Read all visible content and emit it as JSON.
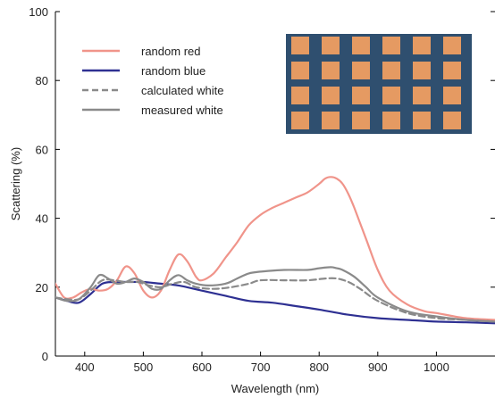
{
  "chart_data": {
    "type": "line",
    "xlabel": "Wavelength (nm)",
    "ylabel": "Scattering (%)",
    "xlim": [
      350,
      1100
    ],
    "ylim": [
      0,
      100
    ],
    "xticks": [
      400,
      500,
      600,
      700,
      800,
      900,
      1000
    ],
    "yticks": [
      0,
      20,
      40,
      60,
      80,
      100
    ],
    "grid": false,
    "legend_position": "top-left",
    "inset": {
      "description_icon": "microscope-image-icon",
      "position": "top-right"
    },
    "series": [
      {
        "name": "random red",
        "color": "#f0948a",
        "dash": "solid",
        "x": [
          350,
          365,
          380,
          395,
          410,
          425,
          440,
          455,
          470,
          485,
          500,
          515,
          530,
          545,
          560,
          575,
          590,
          600,
          620,
          640,
          660,
          680,
          700,
          720,
          740,
          760,
          780,
          800,
          810,
          820,
          830,
          840,
          850,
          860,
          880,
          900,
          920,
          950,
          980,
          1000,
          1050,
          1100
        ],
        "y": [
          21,
          17,
          17,
          18.5,
          19.5,
          19,
          19.5,
          22,
          26,
          24,
          19,
          17,
          19,
          25,
          29.5,
          27.5,
          23,
          22,
          24,
          28.5,
          33,
          38,
          41,
          43,
          44.5,
          46,
          47.5,
          50,
          51.5,
          52,
          51.5,
          50,
          47,
          43,
          34,
          25,
          19,
          15,
          13,
          12.5,
          11,
          10.5
        ]
      },
      {
        "name": "random blue",
        "color": "#2e3092",
        "dash": "solid",
        "x": [
          350,
          370,
          390,
          410,
          430,
          450,
          480,
          500,
          530,
          560,
          600,
          640,
          680,
          720,
          760,
          800,
          850,
          900,
          950,
          1000,
          1050,
          1100
        ],
        "y": [
          17,
          16,
          15.5,
          18,
          21,
          21.5,
          21.5,
          21.5,
          21,
          20.5,
          19,
          17.5,
          16,
          15.5,
          14.5,
          13.5,
          12,
          11,
          10.5,
          10,
          9.8,
          9.5
        ]
      },
      {
        "name": "calculated white",
        "color": "#8a8a8a",
        "dash": "dashed",
        "x": [
          350,
          370,
          390,
          410,
          430,
          450,
          470,
          490,
          510,
          530,
          550,
          570,
          590,
          620,
          650,
          680,
          700,
          740,
          780,
          810,
          830,
          850,
          870,
          900,
          950,
          1000,
          1050,
          1100
        ],
        "y": [
          17,
          16.5,
          16.5,
          19,
          22,
          22,
          21.5,
          21.5,
          20.5,
          20,
          21,
          21.5,
          20,
          19.5,
          20,
          21,
          22,
          22,
          22,
          22.5,
          22.5,
          21.5,
          19.5,
          16,
          12.5,
          11,
          10.5,
          10
        ]
      },
      {
        "name": "measured white",
        "color": "#8a8a8a",
        "dash": "solid",
        "x": [
          350,
          370,
          390,
          410,
          425,
          440,
          455,
          470,
          485,
          500,
          515,
          530,
          545,
          560,
          575,
          590,
          610,
          640,
          660,
          680,
          700,
          740,
          780,
          800,
          820,
          830,
          840,
          860,
          880,
          900,
          950,
          1000,
          1050,
          1100
        ],
        "y": [
          17,
          16,
          16.5,
          20,
          23.5,
          22.5,
          21,
          21.5,
          22.5,
          21.5,
          19.5,
          19.5,
          22,
          23.5,
          22,
          21,
          20.5,
          21,
          22.5,
          24,
          24.5,
          25,
          25,
          25.5,
          25.8,
          25.5,
          25,
          23,
          20,
          17,
          13,
          11.5,
          10.5,
          10
        ]
      }
    ]
  }
}
